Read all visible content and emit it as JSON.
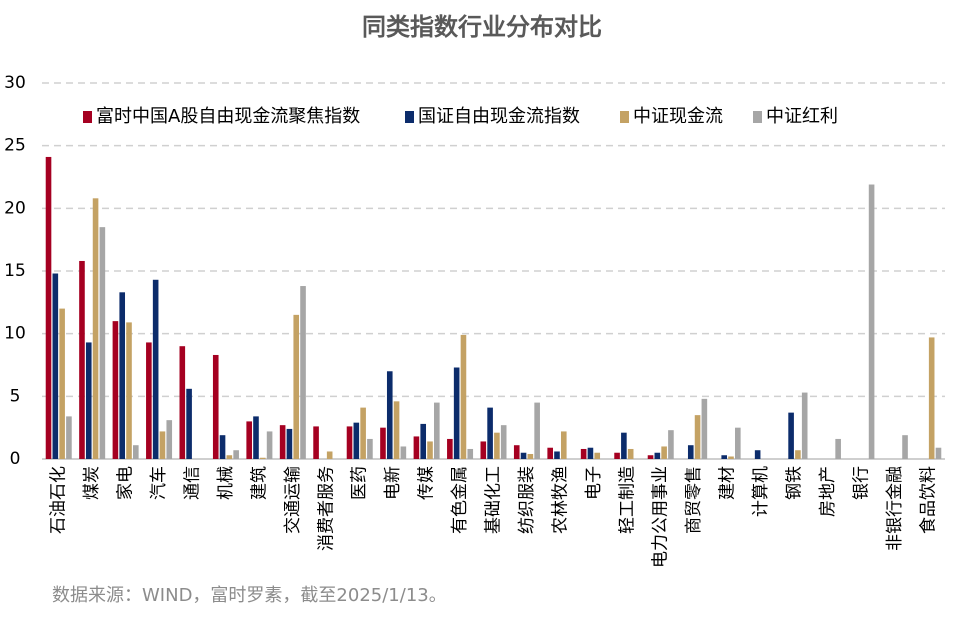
{
  "chart_data": {
    "type": "bar",
    "title": "同类指数行业分布对比",
    "categories": [
      "石油石化",
      "煤炭",
      "家电",
      "汽车",
      "通信",
      "机械",
      "建筑",
      "交通运输",
      "消费者服务",
      "医药",
      "电新",
      "传媒",
      "有色金属",
      "基础化工",
      "纺织服装",
      "农林牧渔",
      "电子",
      "轻工制造",
      "电力公用事业",
      "商贸零售",
      "建材",
      "计算机",
      "钢铁",
      "房地产",
      "银行",
      "非银行金融",
      "食品饮料"
    ],
    "series": [
      {
        "name": "富时中国A股自由现金流聚焦指数",
        "color": "#a50021",
        "values": [
          24.1,
          15.8,
          11.0,
          9.3,
          9.0,
          8.3,
          3.0,
          2.7,
          2.6,
          2.6,
          2.5,
          1.8,
          1.6,
          1.4,
          1.1,
          0.9,
          0.8,
          0.5,
          0.3,
          0,
          0,
          0,
          0,
          0,
          0,
          0,
          0
        ]
      },
      {
        "name": "国证自由现金流指数",
        "color": "#0c2c6b",
        "values": [
          14.8,
          9.3,
          13.3,
          14.3,
          5.6,
          1.9,
          3.4,
          2.4,
          0,
          2.9,
          7.0,
          2.8,
          7.3,
          4.1,
          0.5,
          0.6,
          0.9,
          2.1,
          0.5,
          1.1,
          0.3,
          0.7,
          3.7,
          0,
          0,
          0,
          0
        ]
      },
      {
        "name": "中证现金流",
        "color": "#c4a264",
        "values": [
          12.0,
          20.8,
          10.9,
          2.2,
          0,
          0.3,
          0.1,
          11.5,
          0.6,
          4.1,
          4.6,
          1.4,
          9.9,
          2.1,
          0.4,
          2.2,
          0.5,
          0.8,
          1.0,
          3.5,
          0.2,
          0,
          0.7,
          0,
          0,
          0,
          9.7
        ]
      },
      {
        "name": "中证红利",
        "color": "#a6a6a6",
        "values": [
          3.4,
          18.5,
          1.1,
          3.1,
          0,
          0.7,
          2.2,
          13.8,
          0,
          1.6,
          1.0,
          4.5,
          0.8,
          2.7,
          4.5,
          0,
          0,
          0,
          2.3,
          4.8,
          2.5,
          0,
          5.3,
          1.6,
          21.9,
          1.9,
          0.9
        ]
      }
    ],
    "ylim": [
      0,
      30
    ],
    "yticks": [
      0,
      5,
      10,
      15,
      20,
      25,
      30
    ],
    "grid": true,
    "source": "数据来源：WIND，富时罗素，截至2025/1/13。"
  }
}
